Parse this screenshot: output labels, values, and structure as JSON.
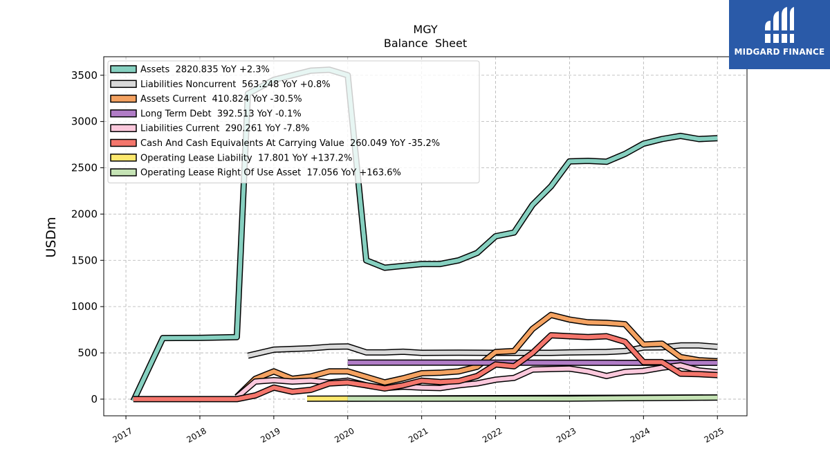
{
  "chart_data": {
    "type": "line",
    "title": "MGY",
    "subtitle": "Balance  Sheet",
    "ylabel": "USDm",
    "xlabel": "",
    "ylim": [
      -180,
      3700
    ],
    "xlim": [
      2016.7,
      2025.4
    ],
    "yticks": [
      0,
      500,
      1000,
      1500,
      2000,
      2500,
      3000,
      3500
    ],
    "xticks": [
      2017,
      2018,
      2019,
      2020,
      2021,
      2022,
      2023,
      2024,
      2025
    ],
    "grid": true,
    "legend_position": "top-left",
    "series": [
      {
        "name": "Assets",
        "legend": "Assets  2820.835 YoY +2.3%",
        "color": "#86d0c0",
        "points": [
          [
            2017.1,
            -20
          ],
          [
            2017.5,
            660
          ],
          [
            2018.0,
            662
          ],
          [
            2018.5,
            670
          ],
          [
            2018.65,
            3300
          ],
          [
            2019.0,
            3450
          ],
          [
            2019.5,
            3550
          ],
          [
            2019.75,
            3560
          ],
          [
            2020.0,
            3500
          ],
          [
            2020.25,
            1500
          ],
          [
            2020.5,
            1420
          ],
          [
            2020.75,
            1440
          ],
          [
            2021.0,
            1460
          ],
          [
            2021.25,
            1460
          ],
          [
            2021.5,
            1500
          ],
          [
            2021.75,
            1580
          ],
          [
            2022.0,
            1760
          ],
          [
            2022.25,
            1800
          ],
          [
            2022.5,
            2100
          ],
          [
            2022.75,
            2300
          ],
          [
            2023.0,
            2570
          ],
          [
            2023.25,
            2575
          ],
          [
            2023.5,
            2565
          ],
          [
            2023.75,
            2650
          ],
          [
            2024.0,
            2760
          ],
          [
            2024.25,
            2810
          ],
          [
            2024.5,
            2845
          ],
          [
            2024.75,
            2810
          ],
          [
            2025.0,
            2820
          ]
        ]
      },
      {
        "name": "Liabilities Noncurrent",
        "legend": "Liabilities Noncurrent  563.248 YoY +0.8%",
        "color": "#d9d9d9",
        "points": [
          [
            2018.65,
            470
          ],
          [
            2019.0,
            535
          ],
          [
            2019.5,
            550
          ],
          [
            2019.75,
            565
          ],
          [
            2020.0,
            570
          ],
          [
            2020.25,
            505
          ],
          [
            2020.5,
            505
          ],
          [
            2020.75,
            512
          ],
          [
            2021.0,
            500
          ],
          [
            2021.5,
            502
          ],
          [
            2022.0,
            500
          ],
          [
            2022.5,
            500
          ],
          [
            2022.75,
            500
          ],
          [
            2023.0,
            505
          ],
          [
            2023.5,
            510
          ],
          [
            2023.75,
            520
          ],
          [
            2024.0,
            558
          ],
          [
            2024.25,
            560
          ],
          [
            2024.5,
            580
          ],
          [
            2024.75,
            580
          ],
          [
            2025.0,
            565
          ]
        ]
      },
      {
        "name": "Assets Current",
        "legend": "Assets Current  410.824 YoY -30.5%",
        "color": "#f4a261",
        "points": [
          [
            2018.5,
            25
          ],
          [
            2018.75,
            220
          ],
          [
            2019.0,
            300
          ],
          [
            2019.25,
            220
          ],
          [
            2019.5,
            245
          ],
          [
            2019.75,
            300
          ],
          [
            2020.0,
            300
          ],
          [
            2020.25,
            240
          ],
          [
            2020.5,
            180
          ],
          [
            2020.75,
            225
          ],
          [
            2021.0,
            280
          ],
          [
            2021.25,
            285
          ],
          [
            2021.5,
            300
          ],
          [
            2021.75,
            350
          ],
          [
            2022.0,
            510
          ],
          [
            2022.25,
            520
          ],
          [
            2022.5,
            760
          ],
          [
            2022.75,
            910
          ],
          [
            2023.0,
            860
          ],
          [
            2023.25,
            830
          ],
          [
            2023.5,
            825
          ],
          [
            2023.75,
            810
          ],
          [
            2024.0,
            590
          ],
          [
            2024.25,
            600
          ],
          [
            2024.5,
            455
          ],
          [
            2024.75,
            420
          ],
          [
            2025.0,
            410
          ]
        ]
      },
      {
        "name": "Long Term Debt",
        "legend": "Long Term Debt  392.513 YoY -0.1%",
        "color": "#b07cc6",
        "points": [
          [
            2020.0,
            395
          ],
          [
            2025.0,
            392.5
          ]
        ]
      },
      {
        "name": "Liabilities Current",
        "legend": "Liabilities Current  290.261 YoY -7.8%",
        "color": "#fbc8dc",
        "points": [
          [
            2018.5,
            20
          ],
          [
            2018.75,
            190
          ],
          [
            2019.0,
            205
          ],
          [
            2019.25,
            190
          ],
          [
            2019.5,
            200
          ],
          [
            2019.75,
            180
          ],
          [
            2020.0,
            200
          ],
          [
            2020.25,
            150
          ],
          [
            2020.5,
            120
          ],
          [
            2020.75,
            135
          ],
          [
            2021.0,
            125
          ],
          [
            2021.25,
            120
          ],
          [
            2021.5,
            150
          ],
          [
            2021.75,
            170
          ],
          [
            2022.0,
            210
          ],
          [
            2022.25,
            230
          ],
          [
            2022.5,
            320
          ],
          [
            2022.75,
            325
          ],
          [
            2023.0,
            330
          ],
          [
            2023.25,
            300
          ],
          [
            2023.5,
            250
          ],
          [
            2023.75,
            295
          ],
          [
            2024.0,
            305
          ],
          [
            2024.25,
            340
          ],
          [
            2024.5,
            365
          ],
          [
            2024.75,
            310
          ],
          [
            2025.0,
            290
          ]
        ]
      },
      {
        "name": "Cash And Cash Equivalents At Carrying Value",
        "legend": "Cash And Cash Equivalents At Carrying Value  260.049 YoY -35.2%",
        "color": "#f4766c",
        "points": [
          [
            2017.1,
            0
          ],
          [
            2018.0,
            0
          ],
          [
            2018.5,
            0
          ],
          [
            2018.75,
            40
          ],
          [
            2019.0,
            125
          ],
          [
            2019.25,
            80
          ],
          [
            2019.5,
            100
          ],
          [
            2019.75,
            170
          ],
          [
            2020.0,
            180
          ],
          [
            2020.25,
            150
          ],
          [
            2020.5,
            115
          ],
          [
            2020.75,
            150
          ],
          [
            2021.0,
            200
          ],
          [
            2021.25,
            185
          ],
          [
            2021.5,
            195
          ],
          [
            2021.75,
            250
          ],
          [
            2022.0,
            375
          ],
          [
            2022.25,
            355
          ],
          [
            2022.5,
            500
          ],
          [
            2022.75,
            690
          ],
          [
            2023.0,
            680
          ],
          [
            2023.25,
            670
          ],
          [
            2023.5,
            680
          ],
          [
            2023.75,
            620
          ],
          [
            2024.0,
            400
          ],
          [
            2024.25,
            400
          ],
          [
            2024.5,
            275
          ],
          [
            2024.75,
            270
          ],
          [
            2025.0,
            260
          ]
        ]
      },
      {
        "name": "Operating Lease Liability",
        "legend": "Operating Lease Liability  17.801 YoY +137.2%",
        "color": "#fde86e",
        "points": [
          [
            2019.45,
            5
          ],
          [
            2020.0,
            6
          ],
          [
            2025.0,
            17.8
          ]
        ]
      },
      {
        "name": "Operating Lease Right Of Use Asset",
        "legend": "Operating Lease Right Of Use Asset  17.056 YoY +163.6%",
        "color": "#c5e3b5",
        "points": [
          [
            2020.0,
            5
          ],
          [
            2023.0,
            6
          ],
          [
            2025.0,
            17
          ]
        ]
      }
    ]
  },
  "logo": {
    "text": "MIDGARD FINANCE",
    "color": "#2a5aa8"
  }
}
